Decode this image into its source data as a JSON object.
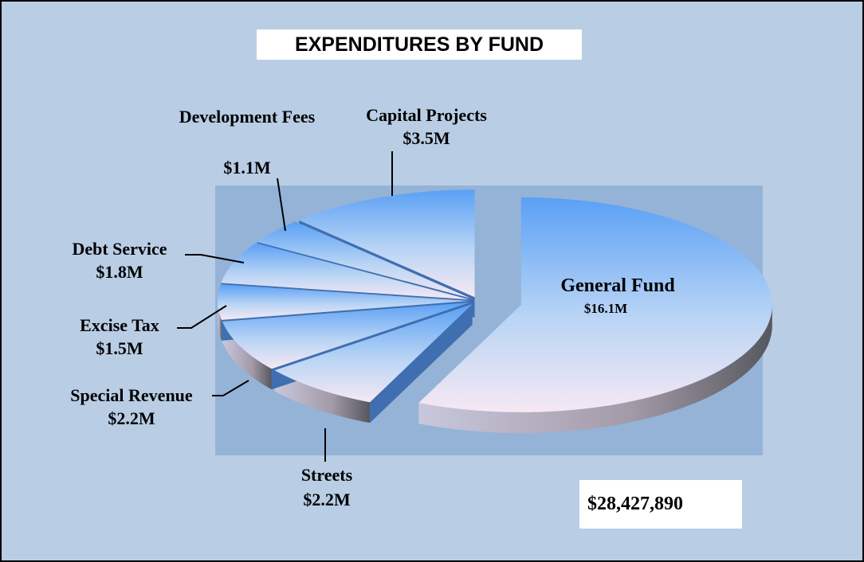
{
  "chart_data": {
    "type": "pie",
    "title": "EXPENDITURES BY FUND",
    "categories": [
      "General Fund",
      "Streets",
      "Special Revenue",
      "Excise Tax",
      "Debt Service",
      "Development Fees",
      "Capital Projects"
    ],
    "values": [
      16.1,
      2.2,
      2.2,
      1.5,
      1.8,
      1.1,
      3.5
    ],
    "value_labels": [
      "$16.1M",
      "$2.2M",
      "$2.2M",
      "$1.5M",
      "$1.8M",
      "$1.1M",
      "$3.5M"
    ],
    "annotation": "$28,427,890"
  }
}
